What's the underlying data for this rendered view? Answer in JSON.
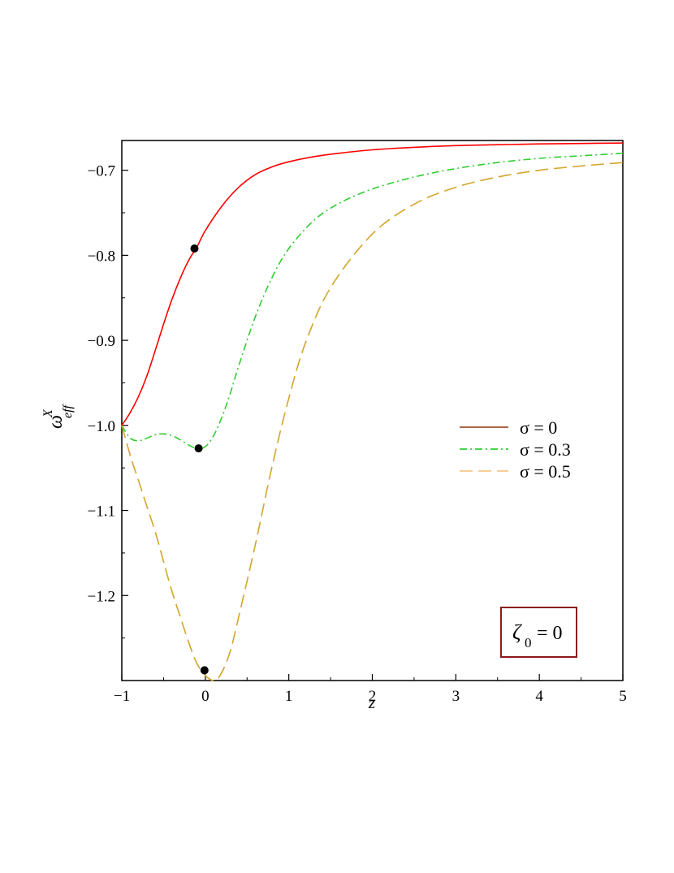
{
  "chart_data": {
    "type": "line",
    "title": "",
    "xlabel": "z",
    "ylabel": {
      "base": "ω",
      "sup": "X",
      "sub": "eff"
    },
    "xlim": [
      -1,
      5
    ],
    "ylim": [
      -1.3,
      -0.665
    ],
    "xticks": [
      -1,
      0,
      1,
      2,
      3,
      4,
      5
    ],
    "xtick_labels": [
      "−1",
      "0",
      "1",
      "2",
      "3",
      "4",
      "5"
    ],
    "yticks": [
      -1.2,
      -1.1,
      -1.0,
      -0.9,
      -0.8,
      -0.7
    ],
    "ytick_labels": [
      "−1.2",
      "−1.1",
      "−1.0",
      "−0.9",
      "−0.8",
      "−0.7"
    ],
    "grid": false,
    "legend_position": "right",
    "annotation": {
      "base": "ζ",
      "sub": "0",
      "rest": " = 0"
    },
    "series": [
      {
        "name": "σ = 0",
        "legend_color": "#a0522d",
        "line_color": "#ff0000",
        "style": "solid",
        "x": [
          -1.0,
          -0.9,
          -0.8,
          -0.7,
          -0.6,
          -0.5,
          -0.4,
          -0.3,
          -0.2,
          -0.1,
          0.0,
          0.2,
          0.4,
          0.6,
          0.8,
          1.0,
          1.3,
          1.6,
          2.0,
          2.5,
          3.0,
          3.5,
          4.0,
          4.5,
          5.0
        ],
        "y": [
          -1.0,
          -0.985,
          -0.966,
          -0.942,
          -0.912,
          -0.881,
          -0.852,
          -0.827,
          -0.806,
          -0.79,
          -0.771,
          -0.742,
          -0.72,
          -0.705,
          -0.696,
          -0.69,
          -0.684,
          -0.68,
          -0.676,
          -0.673,
          -0.671,
          -0.67,
          -0.669,
          -0.6685,
          -0.668
        ]
      },
      {
        "name": "σ = 0.3",
        "legend_color": "#32cd32",
        "line_color": "#32cd32",
        "style": "dashdot",
        "x": [
          -1.0,
          -0.9,
          -0.8,
          -0.7,
          -0.6,
          -0.5,
          -0.4,
          -0.3,
          -0.2,
          -0.1,
          0.0,
          0.1,
          0.2,
          0.3,
          0.4,
          0.6,
          0.8,
          1.0,
          1.3,
          1.6,
          2.0,
          2.5,
          3.0,
          3.5,
          4.0,
          4.5,
          5.0
        ],
        "y": [
          -1.0,
          -1.015,
          -1.018,
          -1.015,
          -1.011,
          -1.01,
          -1.012,
          -1.017,
          -1.023,
          -1.027,
          -1.025,
          -1.012,
          -0.99,
          -0.962,
          -0.93,
          -0.872,
          -0.826,
          -0.792,
          -0.759,
          -0.739,
          -0.722,
          -0.708,
          -0.698,
          -0.691,
          -0.686,
          -0.683,
          -0.68
        ]
      },
      {
        "name": "σ = 0.5",
        "legend_color": "#f5c88c",
        "line_color": "#d4a52a",
        "style": "dashed",
        "x": [
          -1.0,
          -0.9,
          -0.8,
          -0.7,
          -0.6,
          -0.5,
          -0.4,
          -0.3,
          -0.2,
          -0.1,
          0.0,
          0.05,
          0.12,
          0.2,
          0.3,
          0.4,
          0.6,
          0.8,
          1.0,
          1.2,
          1.5,
          2.0,
          2.5,
          3.0,
          3.5,
          4.0,
          4.5,
          5.0
        ],
        "y": [
          -1.0,
          -1.035,
          -1.065,
          -1.095,
          -1.125,
          -1.16,
          -1.195,
          -1.225,
          -1.255,
          -1.28,
          -1.294,
          -1.298,
          -1.3,
          -1.29,
          -1.265,
          -1.225,
          -1.14,
          -1.048,
          -0.968,
          -0.903,
          -0.838,
          -0.775,
          -0.74,
          -0.72,
          -0.708,
          -0.7,
          -0.695,
          -0.691
        ]
      }
    ],
    "markers": [
      {
        "x": -0.13,
        "y": -0.792
      },
      {
        "x": -0.08,
        "y": -1.027
      },
      {
        "x": -0.01,
        "y": -1.288
      }
    ]
  }
}
